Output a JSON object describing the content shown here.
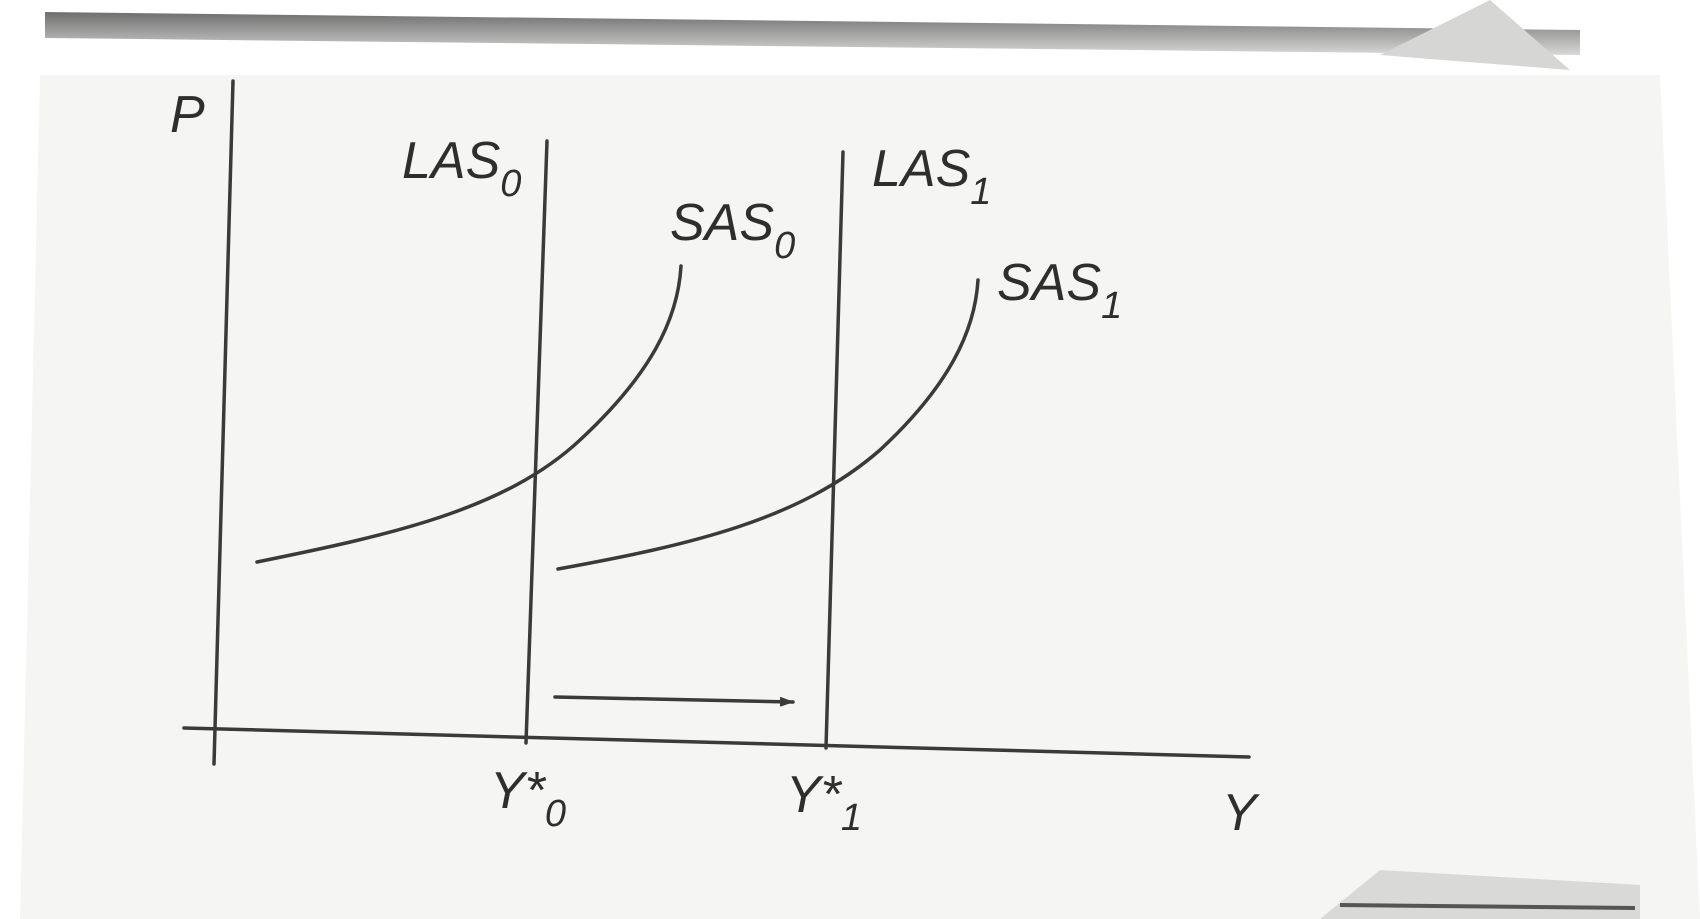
{
  "axes": {
    "y_label": "P",
    "x_label": "Y"
  },
  "curves": [
    {
      "name": "LAS",
      "sub": "0"
    },
    {
      "name": "LAS",
      "sub": "1"
    },
    {
      "name": "SAS",
      "sub": "0"
    },
    {
      "name": "SAS",
      "sub": "1"
    }
  ],
  "ticks": [
    {
      "base": "Y*",
      "sub": "0"
    },
    {
      "base": "Y*",
      "sub": "1"
    }
  ]
}
